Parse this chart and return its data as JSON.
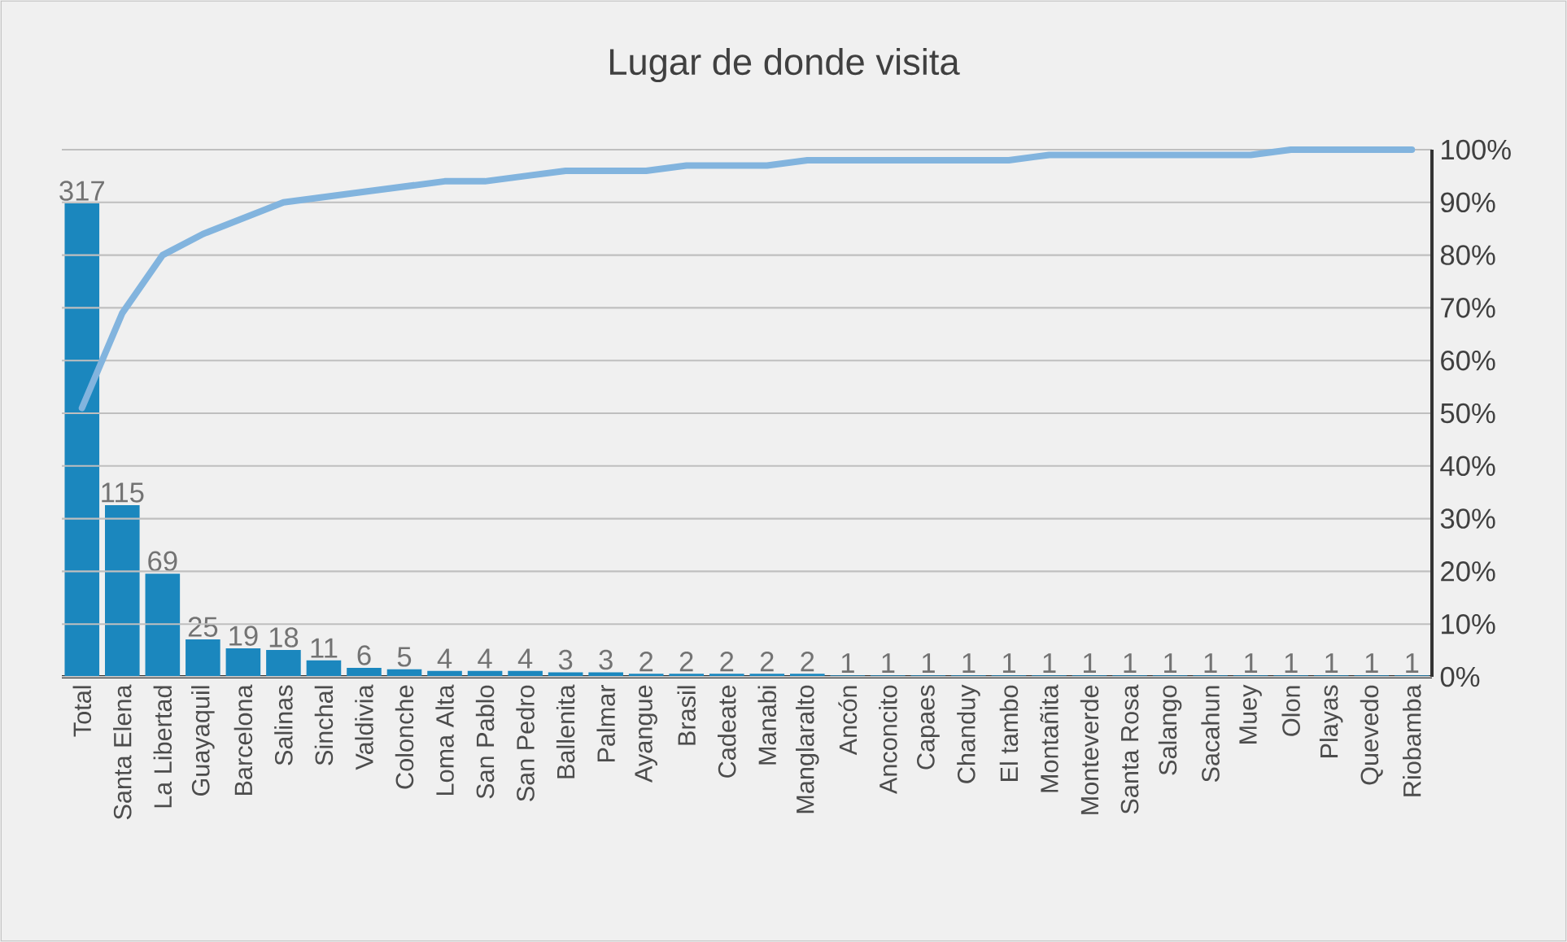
{
  "chart_data": {
    "type": "bar",
    "title": "Lugar de donde visita",
    "categories": [
      "Total",
      "Santa Elena",
      "La Libertad",
      "Guayaquil",
      "Barcelona",
      "Salinas",
      "Sinchal",
      "Valdivia",
      "Colonche",
      "Loma Alta",
      "San Pablo",
      "San Pedro",
      "Ballenita",
      "Palmar",
      "Ayangue",
      "Brasil",
      "Cadeate",
      "Manabi",
      "Manglaralto",
      "Ancón",
      "Anconcito",
      "Capaes",
      "Chanduy",
      "El tambo",
      "Montañita",
      "Monteverde",
      "Santa Rosa",
      "Salango",
      "Sacahun",
      "Muey",
      "Olon",
      "Playas",
      "Quevedo",
      "Riobamba"
    ],
    "series": [
      {
        "color": "#1b87be",
        "values": [
          317,
          115,
          69,
          25,
          19,
          18,
          11,
          6,
          5,
          4,
          4,
          4,
          3,
          3,
          2,
          2,
          2,
          2,
          2,
          1,
          1,
          1,
          1,
          1,
          1,
          1,
          1,
          1,
          1,
          1,
          1,
          1,
          1,
          1
        ],
        "value_labels": [
          "317",
          "115",
          "69",
          "25",
          "19",
          "18",
          "11",
          "6",
          "5",
          "4",
          "4",
          "4",
          "3",
          "3",
          "2",
          "2",
          "2",
          "2",
          "2",
          "1",
          "1",
          "1",
          "1",
          "1",
          "1",
          "1",
          "1",
          "1",
          "1",
          "1",
          "1",
          "1",
          "1",
          "1"
        ]
      },
      {
        "type": "line",
        "axis": "y2",
        "color": "#82b4de",
        "values": [
          51,
          69,
          80,
          84,
          87,
          90,
          91,
          92,
          93,
          94,
          94,
          95,
          96,
          96,
          96,
          97,
          97,
          97,
          98,
          98,
          98,
          98,
          98,
          98,
          99,
          99,
          99,
          99,
          99,
          99,
          100,
          100,
          100,
          100
        ]
      }
    ],
    "ylim": [
      0,
      353
    ],
    "y2lim": [
      0,
      100
    ],
    "y2ticks": [
      {
        "value": 0,
        "label": "0%"
      },
      {
        "value": 10,
        "label": "10%"
      },
      {
        "value": 20,
        "label": "20%"
      },
      {
        "value": 30,
        "label": "30%"
      },
      {
        "value": 40,
        "label": "40%"
      },
      {
        "value": 50,
        "label": "50%"
      },
      {
        "value": 60,
        "label": "60%"
      },
      {
        "value": 70,
        "label": "70%"
      },
      {
        "value": 80,
        "label": "80%"
      },
      {
        "value": 90,
        "label": "90%"
      },
      {
        "value": 100,
        "label": "100%"
      }
    ],
    "grid": "y2",
    "tick_labels": [
      "x",
      "y2"
    ],
    "marker": "none",
    "line_style": "solid"
  }
}
